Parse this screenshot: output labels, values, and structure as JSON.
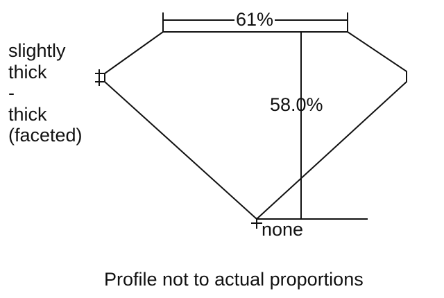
{
  "diagram": {
    "table_percent": "61%",
    "depth_percent": "58.0%",
    "girdle_label": [
      "slightly",
      "thick",
      "-",
      "thick",
      "(faceted)"
    ],
    "culet_label": "none",
    "note": "Profile not to actual proportions",
    "line_color": "#111111",
    "background": "#ffffff"
  }
}
